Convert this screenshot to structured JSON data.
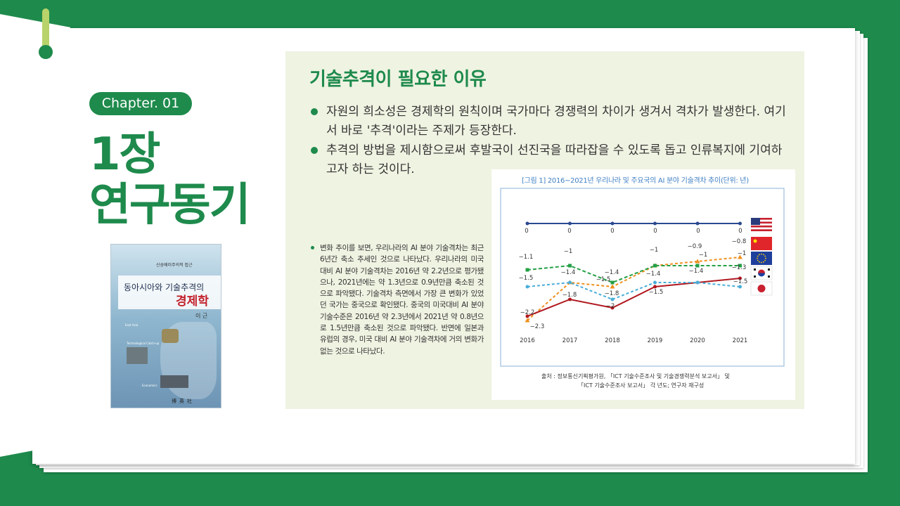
{
  "chapter": {
    "badge": "Chapter. 01",
    "title_line1": "1장",
    "title_line2": "연구동기"
  },
  "book": {
    "subtitle": "신숭배러주의적 접근",
    "title_line1": "동아시아와 기술추격의",
    "title_line2": "경제학",
    "author": "이 근",
    "label_eastasia": "East Asia",
    "label_catchup": "Technological Catch-up",
    "label_economics": "Economics",
    "publisher": "博英社"
  },
  "panel": {
    "heading": "기술추격이 필요한 이유",
    "bullet1": "자원의 희소성은 경제학의 원칙이며 국가마다 경쟁력의 차이가 생겨서 격차가 발생한다. 여기서 바로 '추격'이라는 주제가 등장한다.",
    "bullet2": "추격의 방법을 제시함으로써 후발국이 선진국을 따라잡을 수 있도록 돕고 인류복지에 기여하고자 하는 것이다.",
    "detail": "변화 추이를 보면, 우리나라의 AI 분야 기술격차는 최근 6년간 축소 추세인 것으로 나타났다. 우리나라의 미국 대비 AI 분야 기술격차는 2016년 약 2.2년으로 평가됐으나, 2021년에는 약 1.3년으로 0.9년만큼 축소된 것으로 파악됐다. 기술격차 측면에서 가장 큰 변화가 있었던 국가는 중국으로 확인됐다. 중국의 미국대비 AI 분야 기술수준은 2016년 약 2.3년에서 2021년 약 0.8년으로 1.5년만큼 축소된 것으로 파악됐다. 반면에 일본과 유럽의 경우, 미국 대비 AI 분야 기술격차에 거의 변화가 없는 것으로 나타났다."
  },
  "chart_box": {
    "title": "[그림 1] 2016~2021년 우리나라 및 주요국의 AI 분야 기술격차 추이(단위: 년)",
    "source_line1": "출처 : 정보통신기획평가원, 「ICT 기술수준조사 및 기술경쟁력분석 보고서」 및",
    "source_line2": "「ICT 기술수준조사 보고서」 각 년도; 연구자 재구성"
  },
  "colors": {
    "brand_green": "#1e8a4c",
    "us": "#2a4a8f",
    "china": "#f0901e",
    "eu": "#23a045",
    "korea": "#b0181e",
    "japan": "#4aaed8"
  },
  "chart_data": {
    "type": "line",
    "title": "[그림 1] 2016~2021년 우리나라 및 주요국의 AI 분야 기술격차 추이(단위: 년)",
    "x": [
      "2016",
      "2017",
      "2018",
      "2019",
      "2020",
      "2021"
    ],
    "ylim": [
      -2.5,
      0
    ],
    "legend": "right (flags)",
    "series": [
      {
        "flag": "us-flag-icon",
        "color": "#2a4a8f",
        "values": [
          0,
          0,
          0,
          0,
          0,
          0
        ]
      },
      {
        "flag": "china-flag-icon",
        "color": "#f0901e",
        "values": [
          -2.3,
          -1.4,
          -1.5,
          -1.0,
          -0.9,
          -0.8
        ]
      },
      {
        "flag": "eu-flag-icon",
        "color": "#23a045",
        "values": [
          -1.1,
          -1.0,
          -1.4,
          -1.0,
          -1.0,
          -1.0
        ]
      },
      {
        "flag": "korea-flag-icon",
        "color": "#b0181e",
        "values": [
          -2.2,
          -1.8,
          -2.0,
          -1.5,
          -1.4,
          -1.3
        ]
      },
      {
        "flag": "japan-flag-icon",
        "color": "#4aaed8",
        "values": [
          -1.5,
          -1.4,
          -1.8,
          -1.4,
          -1.4,
          -1.5
        ]
      }
    ],
    "labels": [
      {
        "text": "0"
      },
      {
        "text": "0"
      },
      {
        "text": "0"
      },
      {
        "text": "0"
      },
      {
        "text": "0"
      },
      {
        "text": "0"
      },
      {
        "text": "-1.1"
      },
      {
        "text": "-1"
      },
      {
        "text": "-1"
      },
      {
        "text": "-0.9"
      },
      {
        "text": "-0.8"
      },
      {
        "text": "-1"
      },
      {
        "text": "-1"
      },
      {
        "text": "-1.5"
      },
      {
        "text": "-1.4"
      },
      {
        "text": "-1.4"
      },
      {
        "text": "-1.5"
      },
      {
        "text": "-1.4"
      },
      {
        "text": "-1.4"
      },
      {
        "text": "-1.3"
      },
      {
        "text": "-1.5"
      },
      {
        "text": "-1.8"
      },
      {
        "text": "-1.8"
      },
      {
        "text": "-2"
      },
      {
        "text": "-1.5"
      },
      {
        "text": "-2.2"
      },
      {
        "text": "-2.3"
      }
    ]
  }
}
